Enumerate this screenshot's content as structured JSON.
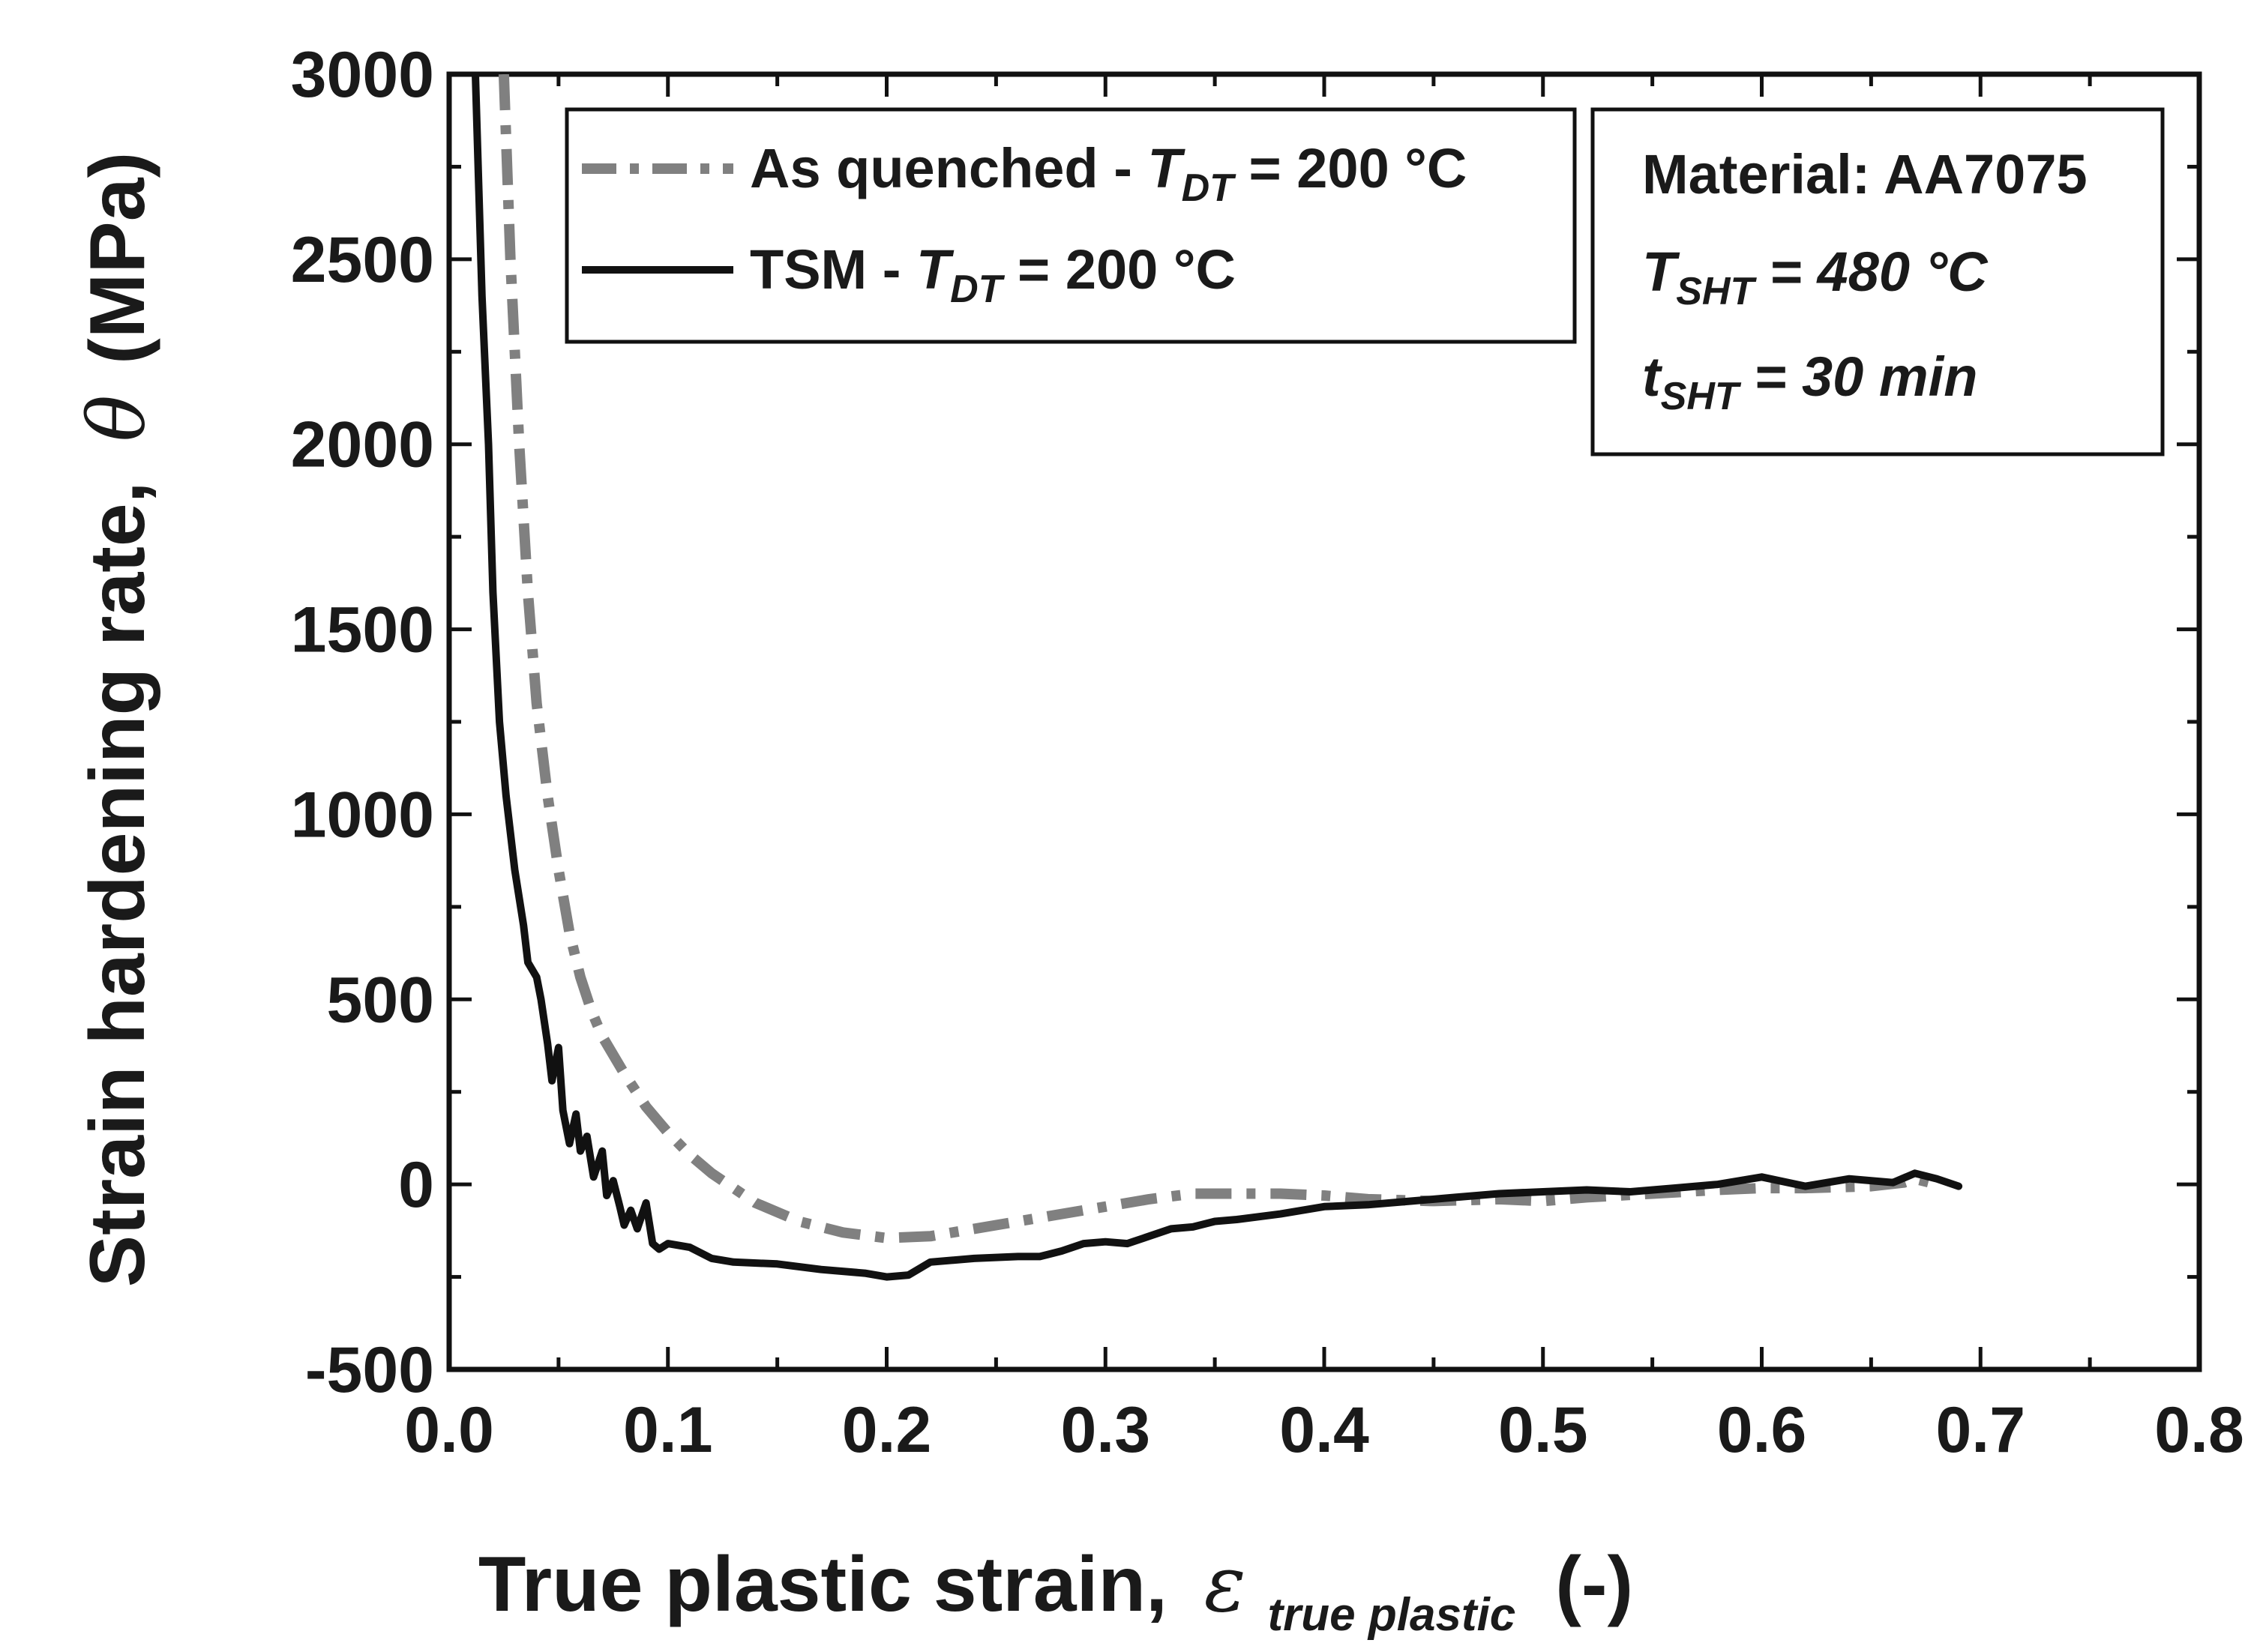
{
  "chart_data": {
    "type": "line",
    "xlabel": {
      "main": "True plastic strain,",
      "symbol": "ε",
      "symbol_sub": "true plastic",
      "unit": "(-)"
    },
    "ylabel": {
      "main": "Strain hardening rate,",
      "symbol": "θ",
      "unit": "(MPa)"
    },
    "xlim": [
      0.0,
      0.8
    ],
    "ylim": [
      -500,
      3000
    ],
    "x_ticks": [
      "0.0",
      "0.1",
      "0.2",
      "0.3",
      "0.4",
      "0.5",
      "0.6",
      "0.7",
      "0.8"
    ],
    "y_ticks": [
      "-500",
      "0",
      "500",
      "1000",
      "1500",
      "2000",
      "2500",
      "3000"
    ],
    "grid": false,
    "legend": {
      "placement": "top-left",
      "entries": [
        {
          "label": "As quenched - ",
          "symbol": "T",
          "symbol_sub": "DT",
          "value": " = 200 °C",
          "series": 0
        },
        {
          "label": "TSM - ",
          "symbol": "T",
          "symbol_sub": "DT",
          "value": " = 200 °C",
          "series": 1
        }
      ]
    },
    "annotation": {
      "placement": "top-right",
      "material": "Material: AA7075",
      "line2": {
        "symbol": "T",
        "sub": "SHT",
        "value": " = 480 °C"
      },
      "line3": {
        "symbol": "t",
        "sub": "SHT",
        "value": " = 30 min"
      }
    },
    "series": [
      {
        "name": "As quenched - T DT = 200 °C",
        "color": "#808080",
        "style": "dash-dot",
        "x": [
          0.025,
          0.028,
          0.032,
          0.036,
          0.04,
          0.045,
          0.05,
          0.055,
          0.06,
          0.065,
          0.07,
          0.08,
          0.09,
          0.1,
          0.11,
          0.12,
          0.14,
          0.16,
          0.18,
          0.2,
          0.22,
          0.25,
          0.28,
          0.3,
          0.32,
          0.34,
          0.36,
          0.38,
          0.4,
          0.42,
          0.45,
          0.48,
          0.5,
          0.52,
          0.55,
          0.58,
          0.6,
          0.62,
          0.65,
          0.665,
          0.67,
          0.68
        ],
        "y": [
          3000,
          2500,
          2000,
          1600,
          1300,
          1050,
          850,
          680,
          560,
          470,
          400,
          300,
          210,
          140,
          80,
          30,
          -50,
          -100,
          -130,
          -145,
          -140,
          -110,
          -80,
          -60,
          -40,
          -25,
          -25,
          -25,
          -30,
          -40,
          -45,
          -40,
          -45,
          -35,
          -25,
          -15,
          -10,
          -10,
          -5,
          5,
          15,
          0
        ]
      },
      {
        "name": "TSM - T DT = 200 °C",
        "color": "#111111",
        "style": "solid",
        "x": [
          0.012,
          0.015,
          0.018,
          0.02,
          0.023,
          0.026,
          0.03,
          0.034,
          0.036,
          0.04,
          0.042,
          0.045,
          0.047,
          0.05,
          0.052,
          0.055,
          0.058,
          0.06,
          0.063,
          0.066,
          0.07,
          0.072,
          0.075,
          0.078,
          0.08,
          0.083,
          0.086,
          0.09,
          0.093,
          0.096,
          0.1,
          0.11,
          0.12,
          0.13,
          0.15,
          0.17,
          0.19,
          0.2,
          0.21,
          0.22,
          0.24,
          0.26,
          0.27,
          0.28,
          0.29,
          0.3,
          0.31,
          0.32,
          0.33,
          0.34,
          0.35,
          0.36,
          0.38,
          0.4,
          0.42,
          0.44,
          0.46,
          0.48,
          0.5,
          0.52,
          0.54,
          0.56,
          0.58,
          0.6,
          0.62,
          0.64,
          0.66,
          0.67,
          0.68,
          0.69
        ],
        "y": [
          3000,
          2400,
          2000,
          1600,
          1250,
          1050,
          850,
          700,
          600,
          560,
          500,
          380,
          280,
          370,
          200,
          110,
          190,
          90,
          130,
          20,
          90,
          -30,
          10,
          -60,
          -110,
          -70,
          -120,
          -50,
          -160,
          -175,
          -160,
          -170,
          -200,
          -210,
          -215,
          -230,
          -240,
          -250,
          -245,
          -210,
          -200,
          -195,
          -195,
          -180,
          -160,
          -155,
          -160,
          -140,
          -120,
          -115,
          -100,
          -95,
          -80,
          -60,
          -55,
          -45,
          -35,
          -25,
          -20,
          -15,
          -20,
          -10,
          0,
          20,
          -5,
          15,
          5,
          30,
          15,
          -5
        ]
      }
    ]
  }
}
